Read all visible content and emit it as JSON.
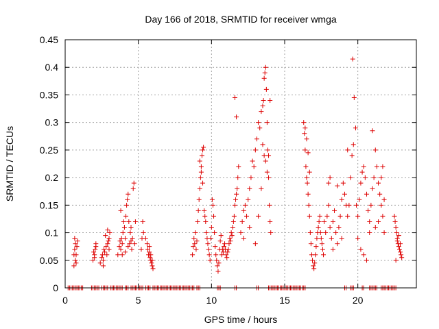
{
  "chart_data": {
    "type": "scatter",
    "title": "Day 166 of 2018, SRMTID for receiver wmga",
    "xlabel": "GPS time / hours",
    "ylabel": "SRMTID / TECUs",
    "xlim": [
      0,
      24
    ],
    "ylim": [
      0,
      0.45
    ],
    "grid": true,
    "marker": "+",
    "color": "#dd0000",
    "x_ticks": [
      0,
      5,
      10,
      15,
      20
    ],
    "x_tick_labels": [
      "0",
      "5",
      "10",
      "15",
      "20"
    ],
    "y_ticks": [
      0,
      0.05,
      0.1,
      0.15,
      0.2,
      0.25,
      0.3,
      0.35,
      0.4,
      0.45
    ],
    "y_tick_labels": [
      "0",
      "0.05",
      "0.1",
      "0.15",
      "0.2",
      "0.25",
      "0.3",
      "0.35",
      "0.4",
      "0.45"
    ],
    "series": [
      {
        "name": "SRMTID",
        "points": [
          [
            0.6,
            0.04
          ],
          [
            0.6,
            0.06
          ],
          [
            0.65,
            0.07
          ],
          [
            0.7,
            0.05
          ],
          [
            0.7,
            0.08
          ],
          [
            0.75,
            0.06
          ],
          [
            0.8,
            0.075
          ],
          [
            0.85,
            0.085
          ],
          [
            0.65,
            0.09
          ],
          [
            0.75,
            0.045
          ],
          [
            1.9,
            0.05
          ],
          [
            1.95,
            0.065
          ],
          [
            2.0,
            0.06
          ],
          [
            2.05,
            0.07
          ],
          [
            2.1,
            0.075
          ],
          [
            2.0,
            0.055
          ],
          [
            2.1,
            0.08
          ],
          [
            2.4,
            0.045
          ],
          [
            2.5,
            0.055
          ],
          [
            2.55,
            0.06
          ],
          [
            2.6,
            0.05
          ],
          [
            2.65,
            0.07
          ],
          [
            2.7,
            0.065
          ],
          [
            2.8,
            0.075
          ],
          [
            2.85,
            0.06
          ],
          [
            2.9,
            0.08
          ],
          [
            2.95,
            0.085
          ],
          [
            3.0,
            0.09
          ],
          [
            3.05,
            0.1
          ],
          [
            3.0,
            0.07
          ],
          [
            2.6,
            0.04
          ],
          [
            2.75,
            0.095
          ],
          [
            2.9,
            0.105
          ],
          [
            3.6,
            0.06
          ],
          [
            3.7,
            0.075
          ],
          [
            3.75,
            0.085
          ],
          [
            3.8,
            0.07
          ],
          [
            3.85,
            0.09
          ],
          [
            3.9,
            0.08
          ],
          [
            3.95,
            0.1
          ],
          [
            4.0,
            0.12
          ],
          [
            4.05,
            0.11
          ],
          [
            4.1,
            0.09
          ],
          [
            4.15,
            0.13
          ],
          [
            4.2,
            0.15
          ],
          [
            4.25,
            0.16
          ],
          [
            4.3,
            0.17
          ],
          [
            4.35,
            0.12
          ],
          [
            4.4,
            0.08
          ],
          [
            4.45,
            0.1
          ],
          [
            4.5,
            0.11
          ],
          [
            4.55,
            0.07
          ],
          [
            4.6,
            0.09
          ],
          [
            4.65,
            0.18
          ],
          [
            4.7,
            0.19
          ],
          [
            4.75,
            0.08
          ],
          [
            4.8,
            0.12
          ],
          [
            3.8,
            0.14
          ],
          [
            3.9,
            0.06
          ],
          [
            4.1,
            0.065
          ],
          [
            4.3,
            0.075
          ],
          [
            4.5,
            0.085
          ],
          [
            5.2,
            0.07
          ],
          [
            5.25,
            0.09
          ],
          [
            5.3,
            0.12
          ],
          [
            5.35,
            0.1
          ],
          [
            5.5,
            0.09
          ],
          [
            5.6,
            0.08
          ],
          [
            5.65,
            0.07
          ],
          [
            5.7,
            0.06
          ],
          [
            5.75,
            0.065
          ],
          [
            5.8,
            0.055
          ],
          [
            5.85,
            0.05
          ],
          [
            5.9,
            0.045
          ],
          [
            5.95,
            0.04
          ],
          [
            6.0,
            0.035
          ],
          [
            5.75,
            0.075
          ],
          [
            5.85,
            0.06
          ],
          [
            5.95,
            0.05
          ],
          [
            8.7,
            0.06
          ],
          [
            8.75,
            0.075
          ],
          [
            8.8,
            0.09
          ],
          [
            8.85,
            0.08
          ],
          [
            8.9,
            0.1
          ],
          [
            8.95,
            0.07
          ],
          [
            9.0,
            0.085
          ],
          [
            9.05,
            0.12
          ],
          [
            9.1,
            0.14
          ],
          [
            9.15,
            0.16
          ],
          [
            9.2,
            0.18
          ],
          [
            9.25,
            0.2
          ],
          [
            9.3,
            0.22
          ],
          [
            9.35,
            0.24
          ],
          [
            9.4,
            0.25
          ],
          [
            9.45,
            0.255
          ],
          [
            9.2,
            0.23
          ],
          [
            9.3,
            0.21
          ],
          [
            9.4,
            0.19
          ],
          [
            9.5,
            0.14
          ],
          [
            9.55,
            0.13
          ],
          [
            9.6,
            0.12
          ],
          [
            9.65,
            0.1
          ],
          [
            9.7,
            0.09
          ],
          [
            9.75,
            0.08
          ],
          [
            9.8,
            0.07
          ],
          [
            9.85,
            0.06
          ],
          [
            9.9,
            0.05
          ],
          [
            9.95,
            0.09
          ],
          [
            10.0,
            0.11
          ],
          [
            10.05,
            0.16
          ],
          [
            10.1,
            0.15
          ],
          [
            10.15,
            0.13
          ],
          [
            10.2,
            0.1
          ],
          [
            10.25,
            0.075
          ],
          [
            10.3,
            0.06
          ],
          [
            10.35,
            0.05
          ],
          [
            10.4,
            0.04
          ],
          [
            10.45,
            0.03
          ],
          [
            10.5,
            0.045
          ],
          [
            10.55,
            0.07
          ],
          [
            10.6,
            0.085
          ],
          [
            10.65,
            0.095
          ],
          [
            10.7,
            0.06
          ],
          [
            10.75,
            0.07
          ],
          [
            10.8,
            0.065
          ],
          [
            10.85,
            0.075
          ],
          [
            10.9,
            0.08
          ],
          [
            10.95,
            0.07
          ],
          [
            11.0,
            0.06
          ],
          [
            11.05,
            0.055
          ],
          [
            11.1,
            0.065
          ],
          [
            11.15,
            0.07
          ],
          [
            11.2,
            0.08
          ],
          [
            11.25,
            0.09
          ],
          [
            11.3,
            0.085
          ],
          [
            11.35,
            0.1
          ],
          [
            11.4,
            0.095
          ],
          [
            11.45,
            0.11
          ],
          [
            11.5,
            0.12
          ],
          [
            11.55,
            0.13
          ],
          [
            11.6,
            0.15
          ],
          [
            11.65,
            0.16
          ],
          [
            11.7,
            0.17
          ],
          [
            11.75,
            0.18
          ],
          [
            11.8,
            0.2
          ],
          [
            11.85,
            0.22
          ],
          [
            11.6,
            0.345
          ],
          [
            11.7,
            0.31
          ],
          [
            12.0,
            0.1
          ],
          [
            12.1,
            0.12
          ],
          [
            12.2,
            0.14
          ],
          [
            12.3,
            0.15
          ],
          [
            12.4,
            0.13
          ],
          [
            12.5,
            0.16
          ],
          [
            12.6,
            0.18
          ],
          [
            12.7,
            0.2
          ],
          [
            12.8,
            0.23
          ],
          [
            12.9,
            0.22
          ],
          [
            13.0,
            0.25
          ],
          [
            13.1,
            0.27
          ],
          [
            13.2,
            0.3
          ],
          [
            13.3,
            0.29
          ],
          [
            13.4,
            0.32
          ],
          [
            13.5,
            0.33
          ],
          [
            13.55,
            0.34
          ],
          [
            13.6,
            0.38
          ],
          [
            13.65,
            0.39
          ],
          [
            13.7,
            0.4
          ],
          [
            13.75,
            0.36
          ],
          [
            13.8,
            0.3
          ],
          [
            13.85,
            0.25
          ],
          [
            13.9,
            0.2
          ],
          [
            13.95,
            0.15
          ],
          [
            14.0,
            0.12
          ],
          [
            14.05,
            0.1
          ],
          [
            13.5,
            0.26
          ],
          [
            13.6,
            0.24
          ],
          [
            13.7,
            0.23
          ],
          [
            13.8,
            0.21
          ],
          [
            13.9,
            0.24
          ],
          [
            14.0,
            0.34
          ],
          [
            12.2,
            0.09
          ],
          [
            12.6,
            0.11
          ],
          [
            13.0,
            0.08
          ],
          [
            13.2,
            0.13
          ],
          [
            13.4,
            0.18
          ],
          [
            16.3,
            0.3
          ],
          [
            16.35,
            0.28
          ],
          [
            16.4,
            0.25
          ],
          [
            16.45,
            0.22
          ],
          [
            16.5,
            0.2
          ],
          [
            16.55,
            0.19
          ],
          [
            16.6,
            0.17
          ],
          [
            16.65,
            0.15
          ],
          [
            16.7,
            0.13
          ],
          [
            16.75,
            0.1
          ],
          [
            16.8,
            0.08
          ],
          [
            16.85,
            0.06
          ],
          [
            16.9,
            0.05
          ],
          [
            16.95,
            0.04
          ],
          [
            17.0,
            0.035
          ],
          [
            17.05,
            0.045
          ],
          [
            17.1,
            0.06
          ],
          [
            17.15,
            0.075
          ],
          [
            17.2,
            0.09
          ],
          [
            17.25,
            0.1
          ],
          [
            17.3,
            0.11
          ],
          [
            17.35,
            0.12
          ],
          [
            17.4,
            0.13
          ],
          [
            17.45,
            0.1
          ],
          [
            17.5,
            0.09
          ],
          [
            17.55,
            0.08
          ],
          [
            17.6,
            0.07
          ],
          [
            17.65,
            0.06
          ],
          [
            16.4,
            0.29
          ],
          [
            16.5,
            0.27
          ],
          [
            16.6,
            0.245
          ],
          [
            16.7,
            0.21
          ],
          [
            17.7,
            0.12
          ],
          [
            17.8,
            0.1
          ],
          [
            17.9,
            0.13
          ],
          [
            18.0,
            0.15
          ],
          [
            18.1,
            0.11
          ],
          [
            18.2,
            0.09
          ],
          [
            18.3,
            0.12
          ],
          [
            18.4,
            0.14
          ],
          [
            18.5,
            0.1
          ],
          [
            18.6,
            0.08
          ],
          [
            18.7,
            0.11
          ],
          [
            18.8,
            0.13
          ],
          [
            18.9,
            0.16
          ],
          [
            19.0,
            0.19
          ],
          [
            19.1,
            0.17
          ],
          [
            19.2,
            0.15
          ],
          [
            19.3,
            0.13
          ],
          [
            19.4,
            0.15
          ],
          [
            19.5,
            0.2
          ],
          [
            19.6,
            0.24
          ],
          [
            19.7,
            0.26
          ],
          [
            18.0,
            0.19
          ],
          [
            18.1,
            0.2
          ],
          [
            18.6,
            0.185
          ],
          [
            19.3,
            0.25
          ],
          [
            19.65,
            0.415
          ],
          [
            19.75,
            0.345
          ],
          [
            19.85,
            0.29
          ],
          [
            18.3,
            0.07
          ],
          [
            18.9,
            0.09
          ],
          [
            19.9,
            0.15
          ],
          [
            20.0,
            0.13
          ],
          [
            20.1,
            0.16
          ],
          [
            20.2,
            0.19
          ],
          [
            20.3,
            0.21
          ],
          [
            20.4,
            0.22
          ],
          [
            20.5,
            0.2
          ],
          [
            20.6,
            0.17
          ],
          [
            20.7,
            0.14
          ],
          [
            20.8,
            0.12
          ],
          [
            20.9,
            0.15
          ],
          [
            21.0,
            0.18
          ],
          [
            21.1,
            0.2
          ],
          [
            21.2,
            0.25
          ],
          [
            21.3,
            0.22
          ],
          [
            21.4,
            0.19
          ],
          [
            21.5,
            0.17
          ],
          [
            21.6,
            0.15
          ],
          [
            21.7,
            0.13
          ],
          [
            21.8,
            0.16
          ],
          [
            20.0,
            0.09
          ],
          [
            20.2,
            0.07
          ],
          [
            20.4,
            0.06
          ],
          [
            20.6,
            0.05
          ],
          [
            20.8,
            0.1
          ],
          [
            21.0,
            0.285
          ],
          [
            21.2,
            0.11
          ],
          [
            21.4,
            0.12
          ],
          [
            21.6,
            0.2
          ],
          [
            21.7,
            0.22
          ],
          [
            21.8,
            0.1
          ],
          [
            22.5,
            0.13
          ],
          [
            22.55,
            0.12
          ],
          [
            22.6,
            0.11
          ],
          [
            22.65,
            0.1
          ],
          [
            22.7,
            0.09
          ],
          [
            22.75,
            0.08
          ],
          [
            22.8,
            0.075
          ],
          [
            22.85,
            0.07
          ],
          [
            22.9,
            0.065
          ],
          [
            22.95,
            0.06
          ],
          [
            23.0,
            0.055
          ],
          [
            22.6,
            0.05
          ],
          [
            22.7,
            0.085
          ],
          [
            22.8,
            0.095
          ],
          [
            22.9,
            0.08
          ]
        ]
      }
    ],
    "zero_segments": [
      [
        0.2,
        1.2
      ],
      [
        1.8,
        2.3
      ],
      [
        2.5,
        2.9
      ],
      [
        3.1,
        3.9
      ],
      [
        4.1,
        4.3
      ],
      [
        4.5,
        5.3
      ],
      [
        5.5,
        5.8
      ],
      [
        6.0,
        8.8
      ],
      [
        9.0,
        9.2
      ],
      [
        10.4,
        10.6
      ],
      [
        11.6,
        11.7
      ],
      [
        13.1,
        13.2
      ],
      [
        13.9,
        16.4
      ],
      [
        19.1,
        19.2
      ],
      [
        19.5,
        19.7
      ],
      [
        20.3,
        20.4
      ],
      [
        20.8,
        21.3
      ],
      [
        21.6,
        22.1
      ],
      [
        22.2,
        22.6
      ]
    ]
  }
}
